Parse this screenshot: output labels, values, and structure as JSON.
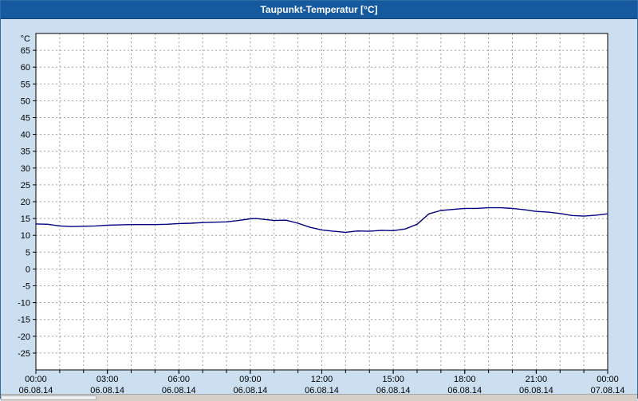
{
  "window": {
    "title": "Taupunkt-Temperatur [°C]"
  },
  "colors": {
    "title_bar": "#15599f",
    "background": "#cbdff0",
    "plot_background": "#ffffff",
    "grid": "#a0a0a0",
    "axis": "#000000",
    "line": "#000080"
  },
  "chart_data": {
    "type": "line",
    "title": "Taupunkt-Temperatur [°C]",
    "y_unit_label": "°C",
    "ylabel": "",
    "xlabel": "",
    "grid": true,
    "ylim": [
      -30,
      70
    ],
    "y_ticks": [
      65,
      60,
      55,
      50,
      45,
      40,
      35,
      30,
      25,
      20,
      15,
      10,
      5,
      0,
      -5,
      -10,
      -15,
      -20,
      -25
    ],
    "x_hours_range": [
      0,
      24
    ],
    "x_minor_step_hours": 1,
    "x_major_ticks": [
      {
        "hour": 0,
        "time": "00:00",
        "date": "06.08.14"
      },
      {
        "hour": 3,
        "time": "03:00",
        "date": "06.08.14"
      },
      {
        "hour": 6,
        "time": "06:00",
        "date": "06.08.14"
      },
      {
        "hour": 9,
        "time": "09:00",
        "date": "06.08.14"
      },
      {
        "hour": 12,
        "time": "12:00",
        "date": "06.08.14"
      },
      {
        "hour": 15,
        "time": "15:00",
        "date": "06.08.14"
      },
      {
        "hour": 18,
        "time": "18:00",
        "date": "06.08.14"
      },
      {
        "hour": 21,
        "time": "21:00",
        "date": "06.08.14"
      },
      {
        "hour": 24,
        "time": "00:00",
        "date": "07.08.14"
      }
    ],
    "series": [
      {
        "name": "Taupunkt-Temperatur",
        "color": "#000080",
        "points": [
          [
            0,
            13.4
          ],
          [
            0.5,
            13.3
          ],
          [
            1,
            12.8
          ],
          [
            1.5,
            12.6
          ],
          [
            2,
            12.7
          ],
          [
            2.5,
            12.8
          ],
          [
            3,
            13.0
          ],
          [
            3.5,
            13.1
          ],
          [
            4,
            13.2
          ],
          [
            4.5,
            13.2
          ],
          [
            5,
            13.2
          ],
          [
            5.5,
            13.3
          ],
          [
            6,
            13.5
          ],
          [
            6.5,
            13.6
          ],
          [
            7,
            13.8
          ],
          [
            7.5,
            13.9
          ],
          [
            8,
            14.0
          ],
          [
            8.5,
            14.4
          ],
          [
            9,
            14.9
          ],
          [
            9.25,
            15.0
          ],
          [
            9.5,
            14.8
          ],
          [
            10,
            14.4
          ],
          [
            10.5,
            14.5
          ],
          [
            11,
            13.6
          ],
          [
            11.5,
            12.4
          ],
          [
            12,
            11.6
          ],
          [
            12.5,
            11.2
          ],
          [
            13,
            10.9
          ],
          [
            13.5,
            11.3
          ],
          [
            14,
            11.2
          ],
          [
            14.5,
            11.5
          ],
          [
            15,
            11.4
          ],
          [
            15.5,
            11.9
          ],
          [
            16,
            13.3
          ],
          [
            16.5,
            16.4
          ],
          [
            17,
            17.4
          ],
          [
            17.5,
            17.7
          ],
          [
            18,
            18.0
          ],
          [
            18.5,
            18.0
          ],
          [
            19,
            18.2
          ],
          [
            19.5,
            18.2
          ],
          [
            20,
            18.0
          ],
          [
            20.5,
            17.6
          ],
          [
            21,
            17.1
          ],
          [
            21.5,
            16.9
          ],
          [
            22,
            16.5
          ],
          [
            22.5,
            15.9
          ],
          [
            23,
            15.7
          ],
          [
            23.5,
            16.0
          ],
          [
            24,
            16.4
          ]
        ]
      }
    ]
  }
}
